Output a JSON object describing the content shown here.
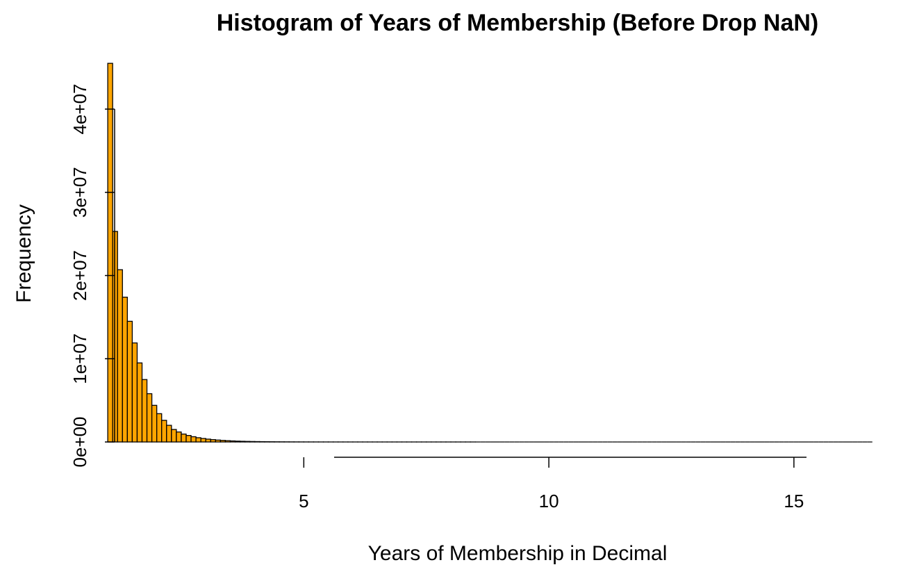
{
  "chart_data": {
    "type": "bar",
    "title": "Histogram of Years of Membership (Before Drop NaN)",
    "xlabel": "Years of Membership in Decimal",
    "ylabel": "Frequency",
    "bar_color": "#FFA500",
    "border_color": "#000000",
    "xlim": [
      0.8,
      17.0
    ],
    "ylim": [
      0,
      45500000
    ],
    "x_ticks": [
      5,
      10,
      15
    ],
    "x_tick_labels": [
      "5",
      "10",
      "15"
    ],
    "y_ticks": [
      0,
      10000000,
      20000000,
      30000000,
      40000000
    ],
    "y_tick_labels": [
      "0e+00",
      "1e+07",
      "2e+07",
      "3e+07",
      "4e+07"
    ],
    "grid": false,
    "legend": "none",
    "bin_width": 0.1,
    "bin_start": 1.0,
    "values": [
      45500000,
      25300000,
      20700000,
      17400000,
      14500000,
      11900000,
      9500000,
      7500000,
      5800000,
      4400000,
      3400000,
      2600000,
      2000000,
      1500000,
      1200000,
      950000,
      780000,
      630000,
      510000,
      420000,
      340000,
      280000,
      230000,
      190000,
      155000,
      125000,
      100000,
      82000,
      67000,
      55000,
      45000,
      37000,
      30000,
      25000,
      20000,
      17000,
      14000,
      11000,
      9000,
      7500,
      6000,
      5000,
      4000,
      3200,
      2600,
      2100,
      1700,
      1400,
      1100,
      900,
      700,
      560,
      450,
      360,
      290,
      230,
      180,
      150,
      120,
      95,
      75,
      60,
      48,
      38,
      30,
      24,
      19,
      15,
      12,
      10,
      8,
      6,
      5,
      4,
      3,
      2,
      2,
      1,
      1,
      1,
      1,
      1,
      1,
      1,
      1,
      1,
      1,
      1,
      1,
      1,
      1,
      1,
      1,
      1,
      1,
      1,
      1,
      1,
      1,
      1,
      1,
      1,
      1,
      1,
      1,
      1,
      1,
      1,
      1,
      1,
      1,
      1,
      1,
      1,
      1,
      1,
      1,
      1,
      1,
      1,
      1,
      1,
      1,
      1,
      1,
      1,
      1,
      1,
      1,
      1,
      1,
      1,
      1,
      1,
      1,
      1,
      1,
      1,
      1,
      1,
      1,
      1,
      1,
      1,
      1,
      1,
      1,
      1,
      1,
      1,
      1,
      1,
      1,
      1,
      1,
      1
    ]
  }
}
